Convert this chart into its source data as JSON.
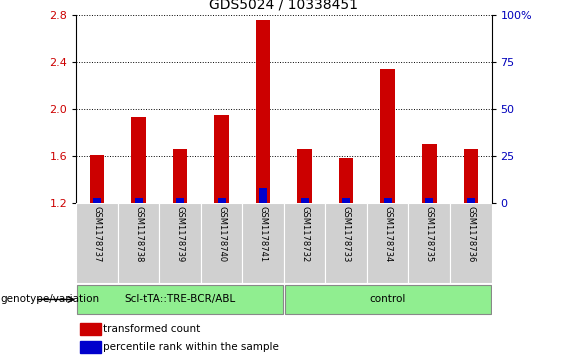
{
  "title": "GDS5024 / 10338451",
  "samples": [
    "GSM1178737",
    "GSM1178738",
    "GSM1178739",
    "GSM1178740",
    "GSM1178741",
    "GSM1178732",
    "GSM1178733",
    "GSM1178734",
    "GSM1178735",
    "GSM1178736"
  ],
  "transformed_counts": [
    1.61,
    1.93,
    1.66,
    1.95,
    2.75,
    1.66,
    1.58,
    2.34,
    1.7,
    1.66
  ],
  "percentile_ranks": [
    3,
    3,
    3,
    3,
    8,
    3,
    3,
    3,
    3,
    3
  ],
  "groups": [
    {
      "label": "Scl-tTA::TRE-BCR/ABL",
      "start": 0,
      "end": 5
    },
    {
      "label": "control",
      "start": 5,
      "end": 10
    }
  ],
  "ylim": [
    1.2,
    2.8
  ],
  "yticks_left": [
    1.2,
    1.6,
    2.0,
    2.4,
    2.8
  ],
  "yticks_right": [
    0,
    25,
    50,
    75,
    100
  ],
  "bar_color": "#cc0000",
  "percentile_color": "#0000cc",
  "bar_width": 0.35,
  "sample_box_color": "#d0d0d0",
  "group_box_color": "#90EE90",
  "plot_bg": "#ffffff",
  "title_fontsize": 10,
  "label_fontsize": 7,
  "legend_items": [
    {
      "label": "transformed count",
      "color": "#cc0000"
    },
    {
      "label": "percentile rank within the sample",
      "color": "#0000cc"
    }
  ],
  "genotype_label": "genotype/variation",
  "ylabel_left_color": "#cc0000",
  "ylabel_right_color": "#0000bb",
  "base_value": 1.2,
  "percentile_scale_range": 1.6
}
